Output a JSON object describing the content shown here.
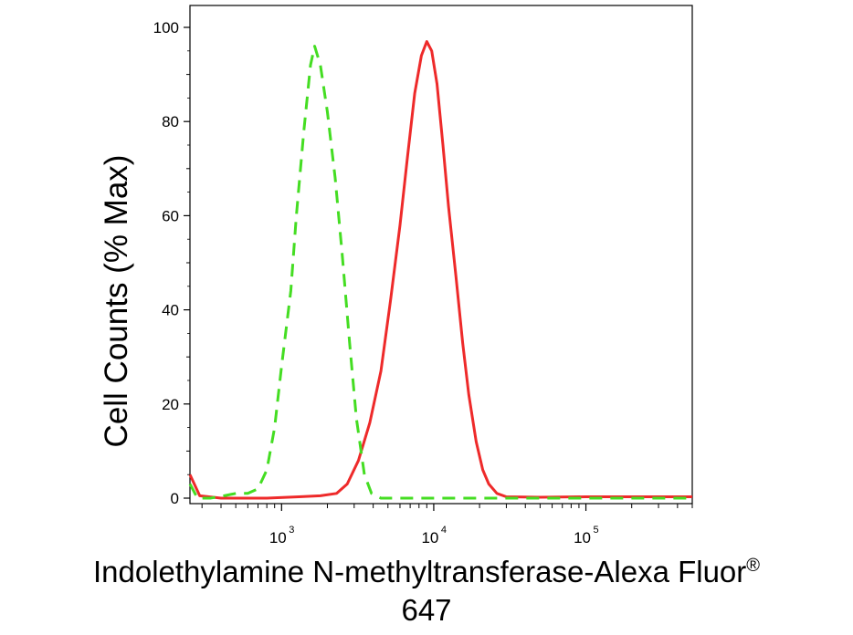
{
  "chart_data": {
    "type": "line",
    "xlabel_line1": "Indolethylamine N-methyltransferase-Alexa Fluor",
    "xlabel_reg": "®",
    "xlabel_line2": "647",
    "ylabel": "Cell Counts (% Max)",
    "x_scale": "log",
    "xlim": [
      250,
      500000
    ],
    "ylim": [
      0,
      100
    ],
    "x_tick_labels": [
      {
        "base": "10",
        "exp": "3",
        "value": 1000
      },
      {
        "base": "10",
        "exp": "4",
        "value": 10000
      },
      {
        "base": "10",
        "exp": "5",
        "value": 100000
      }
    ],
    "y_ticks": [
      0,
      20,
      40,
      60,
      80,
      100
    ],
    "grid": false,
    "series": [
      {
        "style": "solid",
        "color": "#ee2a2a",
        "points": [
          [
            250,
            5
          ],
          [
            290,
            0.5
          ],
          [
            400,
            0
          ],
          [
            800,
            0
          ],
          [
            1300,
            0.3
          ],
          [
            1800,
            0.5
          ],
          [
            2300,
            1
          ],
          [
            2700,
            3
          ],
          [
            3200,
            8
          ],
          [
            3800,
            16
          ],
          [
            4500,
            27
          ],
          [
            5200,
            42
          ],
          [
            6000,
            58
          ],
          [
            6700,
            72
          ],
          [
            7500,
            86
          ],
          [
            8300,
            94
          ],
          [
            9000,
            97
          ],
          [
            9700,
            95
          ],
          [
            10500,
            88
          ],
          [
            11500,
            75
          ],
          [
            12500,
            62
          ],
          [
            14000,
            47
          ],
          [
            15500,
            33
          ],
          [
            17000,
            22
          ],
          [
            19000,
            12
          ],
          [
            21000,
            6
          ],
          [
            23000,
            3
          ],
          [
            26000,
            1
          ],
          [
            30000,
            0.3
          ],
          [
            50000,
            0.2
          ],
          [
            100000,
            0.3
          ],
          [
            200000,
            0.3
          ],
          [
            500000,
            0.3
          ]
        ]
      },
      {
        "style": "dashed",
        "color": "#44dd22",
        "points": [
          [
            250,
            3
          ],
          [
            280,
            0
          ],
          [
            340,
            0
          ],
          [
            420,
            0.5
          ],
          [
            500,
            1
          ],
          [
            600,
            1
          ],
          [
            700,
            2
          ],
          [
            800,
            6
          ],
          [
            900,
            15
          ],
          [
            1000,
            28
          ],
          [
            1150,
            44
          ],
          [
            1250,
            60
          ],
          [
            1400,
            78
          ],
          [
            1550,
            92
          ],
          [
            1650,
            96
          ],
          [
            1800,
            92
          ],
          [
            2000,
            82
          ],
          [
            2250,
            68
          ],
          [
            2500,
            52
          ],
          [
            2800,
            33
          ],
          [
            3100,
            17
          ],
          [
            3500,
            5
          ],
          [
            3900,
            1
          ],
          [
            4500,
            0
          ],
          [
            10000,
            0
          ],
          [
            20000,
            0
          ],
          [
            50000,
            0
          ],
          [
            100000,
            0
          ],
          [
            500000,
            0
          ]
        ]
      }
    ]
  }
}
